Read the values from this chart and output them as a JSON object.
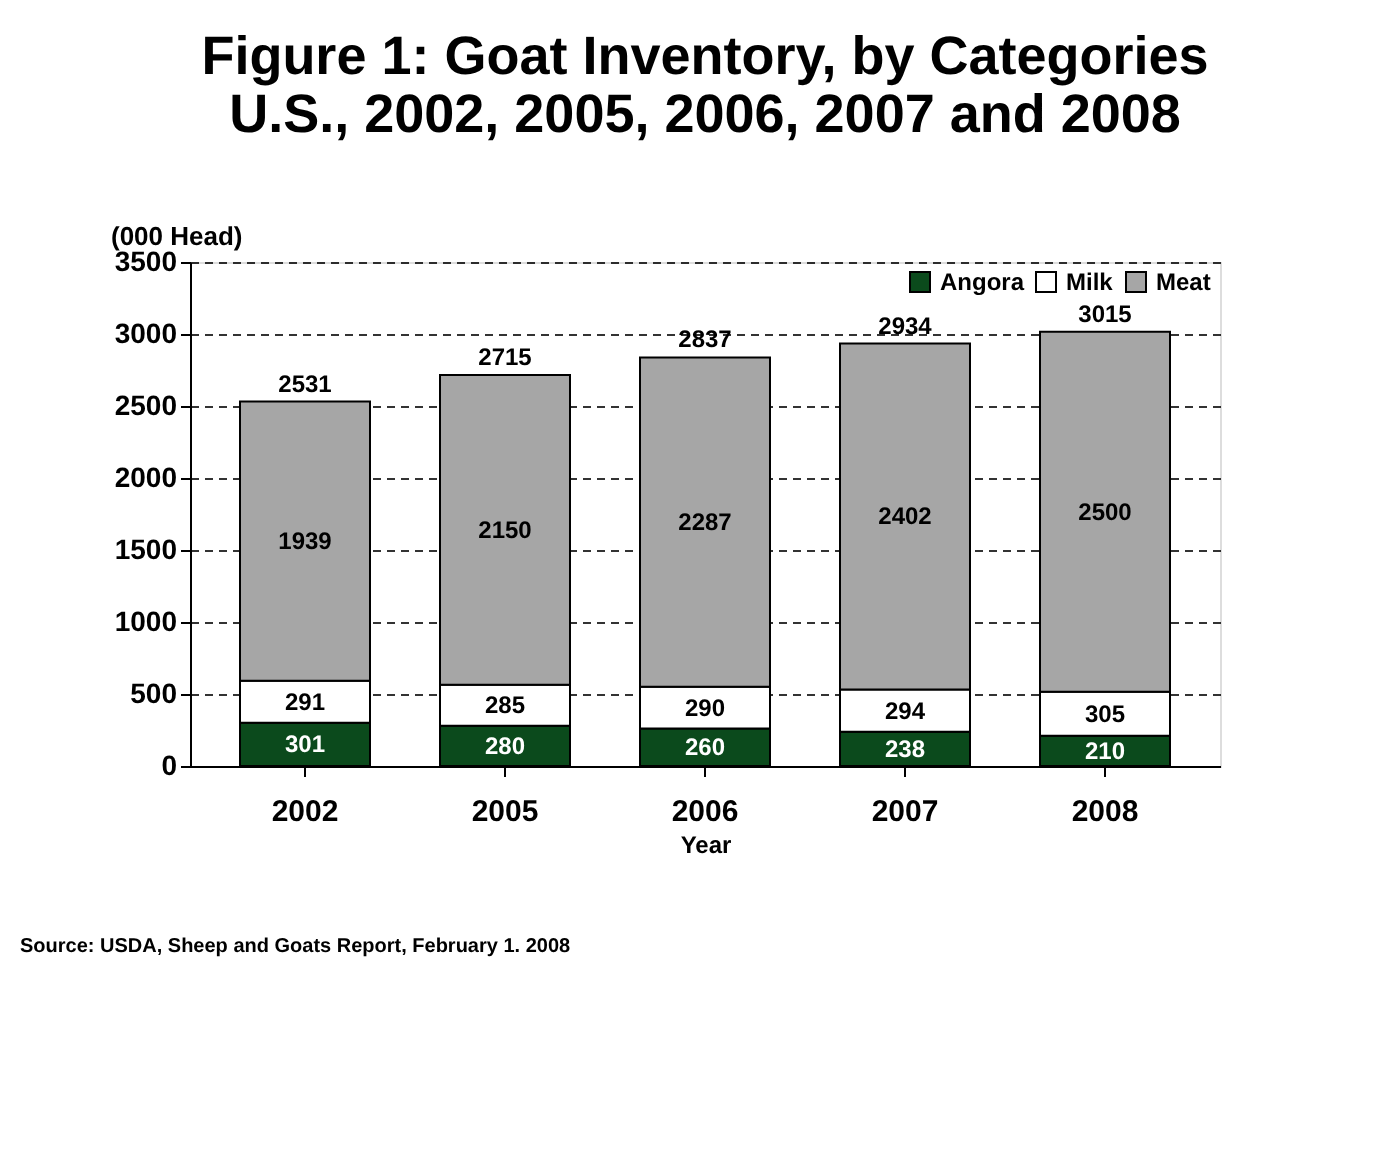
{
  "chart_data": {
    "type": "bar",
    "title": [
      "Figure 1:  Goat Inventory, by Categories",
      "U.S., 2002, 2005, 2006, 2007 and 2008"
    ],
    "xlabel": "Year",
    "ylabel": "(000 Head)",
    "categories": [
      "2002",
      "2005",
      "2006",
      "2007",
      "2008"
    ],
    "stacked": true,
    "series": [
      {
        "name": "Angora",
        "color": "#0b4a1c",
        "values": [
          301,
          280,
          260,
          238,
          210
        ]
      },
      {
        "name": "Milk",
        "color": "#ffffff",
        "values": [
          291,
          285,
          290,
          294,
          305
        ]
      },
      {
        "name": "Meat",
        "color": "#a6a6a6",
        "values": [
          1939,
          2150,
          2287,
          2402,
          2500
        ]
      }
    ],
    "totals": [
      "2531",
      "2715",
      "2837",
      "2934",
      "3015"
    ],
    "data_labels": true,
    "ylim": [
      0,
      3500
    ],
    "yticks": [
      0,
      500,
      1000,
      1500,
      2000,
      2500,
      3000,
      3500
    ],
    "grid": "y",
    "legend": "top right",
    "annotations": [
      "Source:  USDA, Sheep and Goats Report, February 1. 2008"
    ]
  }
}
